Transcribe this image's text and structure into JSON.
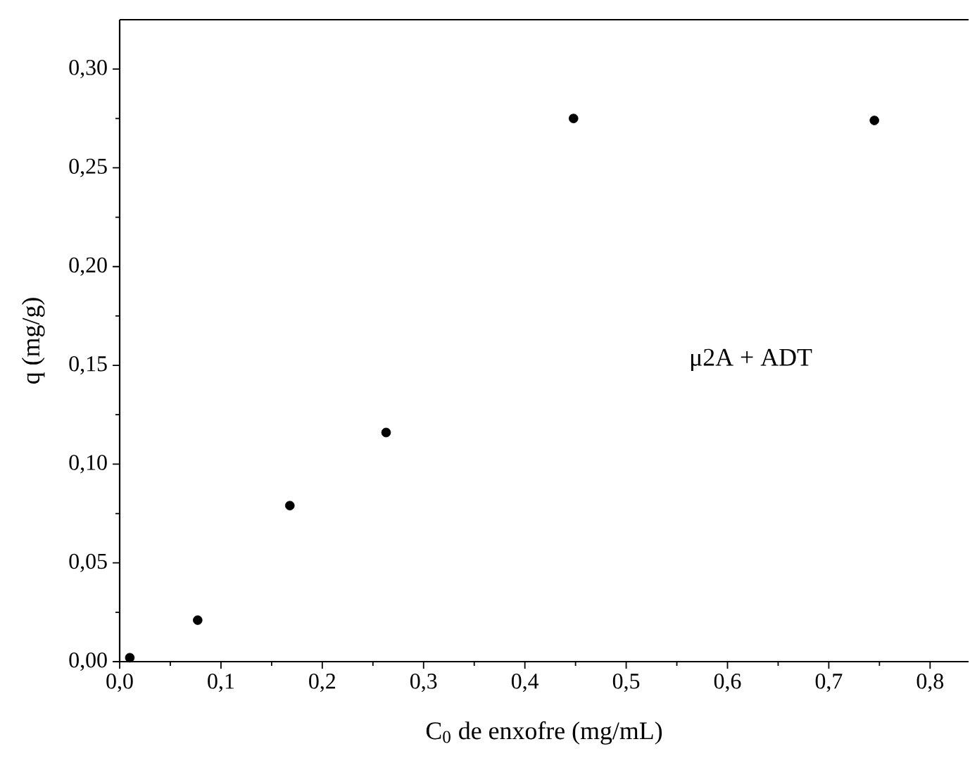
{
  "chart_data": {
    "type": "scatter",
    "xlabel": "C$_{0}$ de enxofre (mg/mL)",
    "ylabel": "q (mg/g)",
    "series": [
      {
        "name": "μ2A + ADT",
        "color": "#000000",
        "x": [
          0.01,
          0.077,
          0.168,
          0.263,
          0.448,
          0.745
        ],
        "values": [
          0.002,
          0.021,
          0.079,
          0.116,
          0.275,
          0.274
        ]
      }
    ],
    "xlim": [
      0,
      0.838
    ],
    "ylim": [
      0,
      0.325
    ],
    "xticks": [
      {
        "value": 0,
        "label": "0,0"
      },
      {
        "value": 0.1,
        "label": "0,1"
      },
      {
        "value": 0.2,
        "label": "0,2"
      },
      {
        "value": 0.3,
        "label": "0,3"
      },
      {
        "value": 0.4,
        "label": "0,4"
      },
      {
        "value": 0.5,
        "label": "0,5"
      },
      {
        "value": 0.6,
        "label": "0,6"
      },
      {
        "value": 0.7,
        "label": "0,7"
      },
      {
        "value": 0.8,
        "label": "0,8"
      }
    ],
    "yticks": [
      {
        "value": 0,
        "label": "0,00"
      },
      {
        "value": 0.05,
        "label": "0,05"
      },
      {
        "value": 0.1,
        "label": "0,10"
      },
      {
        "value": 0.15,
        "label": "0,15"
      },
      {
        "value": 0.2,
        "label": "0,20"
      },
      {
        "value": 0.25,
        "label": "0,25"
      },
      {
        "value": 0.3,
        "label": "0,30"
      }
    ],
    "grid": false,
    "legend": false
  }
}
